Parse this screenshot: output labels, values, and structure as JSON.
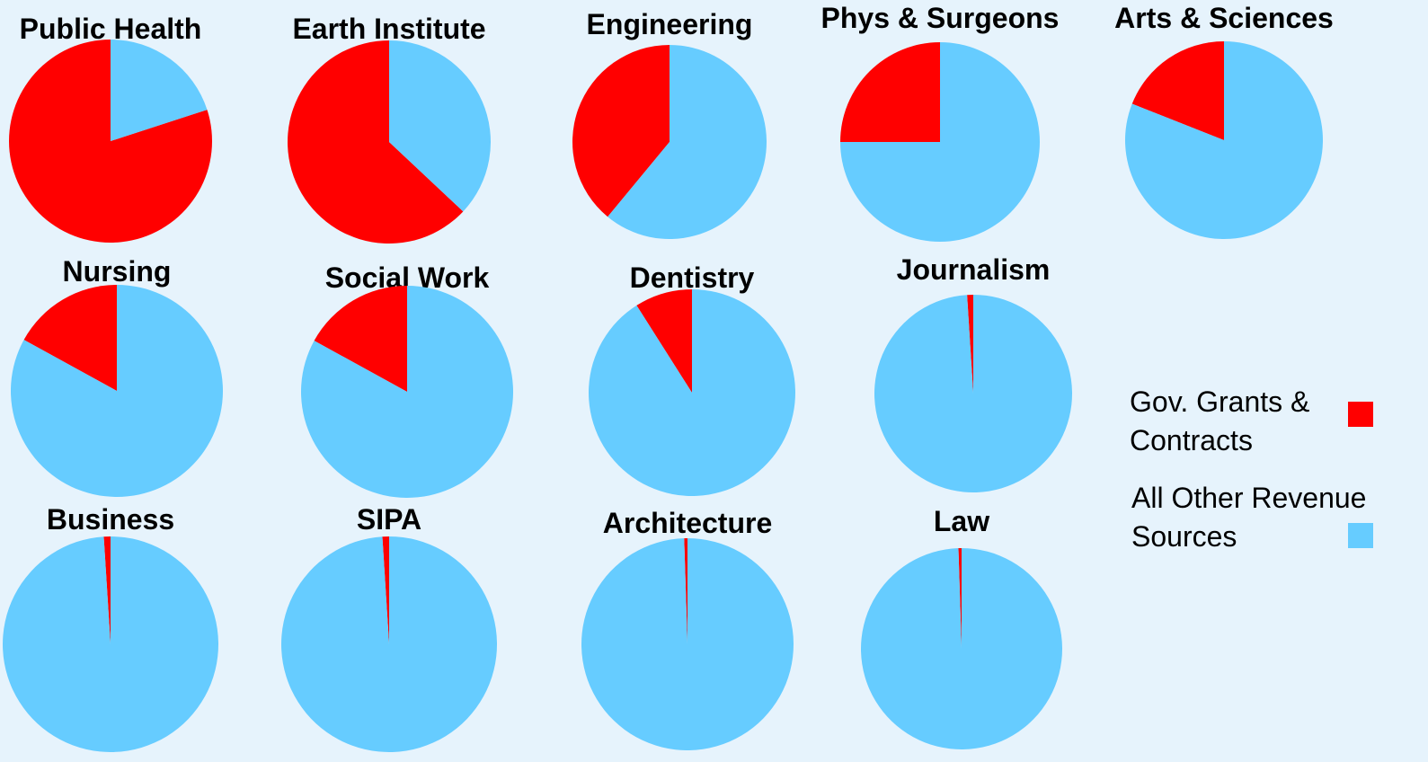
{
  "legend": {
    "labels": [
      "Gov. Grants & Contracts",
      "All Other Revenue Sources"
    ],
    "colors": [
      "#ff0000",
      "#66ccff"
    ]
  },
  "chart_data": [
    {
      "type": "pie",
      "title": "Public Health",
      "values": [
        80,
        20
      ]
    },
    {
      "type": "pie",
      "title": "Earth Institute",
      "values": [
        63,
        37
      ]
    },
    {
      "type": "pie",
      "title": "Engineering",
      "values": [
        39,
        61
      ]
    },
    {
      "type": "pie",
      "title": "Phys & Surgeons",
      "values": [
        25,
        75
      ]
    },
    {
      "type": "pie",
      "title": "Arts & Sciences",
      "values": [
        19,
        81
      ]
    },
    {
      "type": "pie",
      "title": "Nursing",
      "values": [
        17,
        83
      ]
    },
    {
      "type": "pie",
      "title": "Social Work",
      "values": [
        17,
        83
      ]
    },
    {
      "type": "pie",
      "title": "Dentistry",
      "values": [
        9,
        91
      ]
    },
    {
      "type": "pie",
      "title": "Journalism",
      "values": [
        1,
        99
      ]
    },
    {
      "type": "pie",
      "title": "Business",
      "values": [
        1,
        99
      ]
    },
    {
      "type": "pie",
      "title": "SIPA",
      "values": [
        1,
        99
      ]
    },
    {
      "type": "pie",
      "title": "Architecture",
      "values": [
        0.5,
        99.5
      ]
    },
    {
      "type": "pie",
      "title": "Law",
      "values": [
        0.5,
        99.5
      ]
    }
  ]
}
